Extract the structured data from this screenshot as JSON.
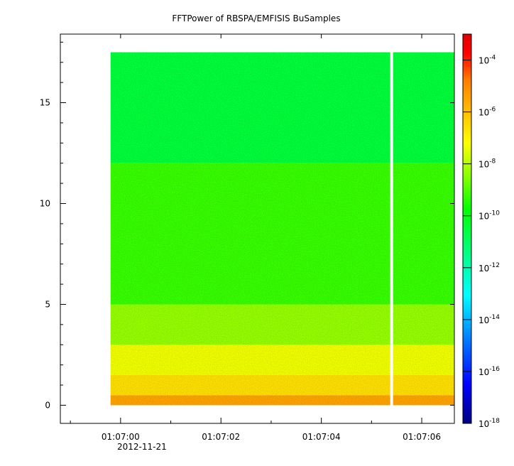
{
  "chart_data": {
    "type": "heatmap",
    "title": "FFTPower of RBSPA/EMFISIS  BuSamples",
    "xlabel": "",
    "ylabel": "",
    "x_ticks": [
      "01:07:00",
      "01:07:02",
      "01:07:04",
      "01:07:06"
    ],
    "x_date_label": "2012-11-21",
    "xlim_seconds_after_01_07_00": [
      -1.2,
      6.65
    ],
    "ylim": [
      -0.9,
      18.4
    ],
    "y_ticks": [
      0,
      5,
      10,
      15
    ],
    "data_x_range_seconds_after_01_07_00": [
      -0.2,
      6.65
    ],
    "data_y_range": [
      0,
      17.5
    ],
    "gap_at_seconds_after_01_07_00": 5.4,
    "colorbar": {
      "scale": "log",
      "range": [
        1e-18,
        0.001
      ],
      "tick_base": "10",
      "tick_exponents": [
        "-4",
        "-6",
        "-8",
        "-10",
        "-12",
        "-14",
        "-16",
        "-18"
      ],
      "colormap": [
        "#000080",
        "#0000ff",
        "#0080ff",
        "#00ffff",
        "#00ff80",
        "#00ff00",
        "#80ff00",
        "#ffff00",
        "#ffbf00",
        "#ff8000",
        "#ff0000",
        "#e00000"
      ]
    },
    "bands": [
      {
        "y": [
          0,
          0.5
        ],
        "log_power": -6.5
      },
      {
        "y": [
          0.5,
          1.5
        ],
        "log_power": -7.8
      },
      {
        "y": [
          1.5,
          3.0
        ],
        "log_power": -8.6
      },
      {
        "y": [
          3.0,
          5.0
        ],
        "log_power": -9.6
      },
      {
        "y": [
          5.0,
          12.0
        ],
        "log_power": -10.6
      },
      {
        "y": [
          12.0,
          17.5
        ],
        "log_power": -11.8
      }
    ]
  }
}
